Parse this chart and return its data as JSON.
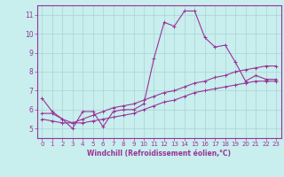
{
  "xlabel": "Windchill (Refroidissement éolien,°C)",
  "background_color": "#c8eeed",
  "grid_color": "#aad4d4",
  "line_color": "#993399",
  "spine_color": "#993399",
  "xlim": [
    -0.5,
    23.5
  ],
  "ylim": [
    4.5,
    11.5
  ],
  "xticks": [
    0,
    1,
    2,
    3,
    4,
    5,
    6,
    7,
    8,
    9,
    10,
    11,
    12,
    13,
    14,
    15,
    16,
    17,
    18,
    19,
    20,
    21,
    22,
    23
  ],
  "yticks": [
    5,
    6,
    7,
    8,
    9,
    10,
    11
  ],
  "series1_x": [
    0,
    1,
    2,
    3,
    4,
    5,
    6,
    7,
    8,
    9,
    10,
    11,
    12,
    13,
    14,
    15,
    16,
    17,
    18,
    19,
    20,
    21,
    22,
    23
  ],
  "series1_y": [
    6.6,
    5.9,
    5.5,
    5.0,
    5.9,
    5.9,
    5.1,
    5.9,
    6.0,
    6.0,
    6.3,
    8.7,
    10.6,
    10.4,
    11.2,
    11.2,
    9.8,
    9.3,
    9.4,
    8.5,
    7.5,
    7.8,
    7.6,
    7.6
  ],
  "series2_x": [
    0,
    1,
    2,
    3,
    4,
    5,
    6,
    7,
    8,
    9,
    10,
    11,
    12,
    13,
    14,
    15,
    16,
    17,
    18,
    19,
    20,
    21,
    22,
    23
  ],
  "series2_y": [
    5.8,
    5.8,
    5.5,
    5.3,
    5.5,
    5.7,
    5.9,
    6.1,
    6.2,
    6.3,
    6.5,
    6.7,
    6.9,
    7.0,
    7.2,
    7.4,
    7.5,
    7.7,
    7.8,
    8.0,
    8.1,
    8.2,
    8.3,
    8.3
  ],
  "series3_x": [
    0,
    1,
    2,
    3,
    4,
    5,
    6,
    7,
    8,
    9,
    10,
    11,
    12,
    13,
    14,
    15,
    16,
    17,
    18,
    19,
    20,
    21,
    22,
    23
  ],
  "series3_y": [
    5.5,
    5.4,
    5.3,
    5.3,
    5.3,
    5.4,
    5.5,
    5.6,
    5.7,
    5.8,
    6.0,
    6.2,
    6.4,
    6.5,
    6.7,
    6.9,
    7.0,
    7.1,
    7.2,
    7.3,
    7.4,
    7.5,
    7.5,
    7.5
  ],
  "tick_fontsize": 5,
  "xlabel_fontsize": 5.5,
  "marker_size": 2.5,
  "linewidth": 0.8
}
